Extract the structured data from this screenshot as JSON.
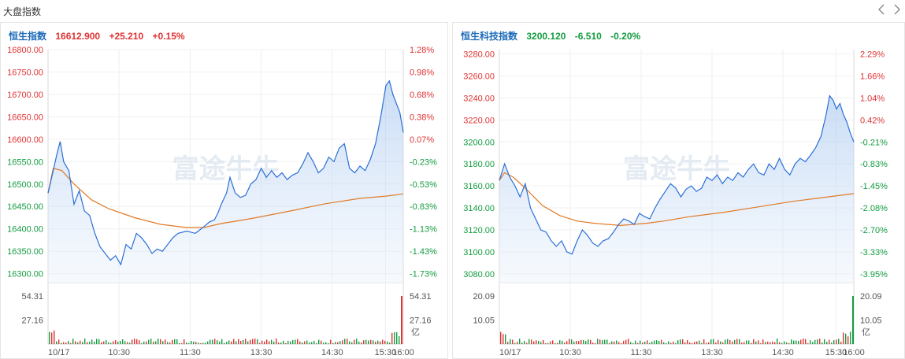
{
  "header": {
    "title": "大盘指数"
  },
  "colors": {
    "up": "#e03333",
    "down": "#149c40",
    "neutral": "#555555",
    "price_line": "#2b6fd6",
    "avg_line": "#e07a26",
    "name": "#1e6bb8"
  },
  "time_labels": [
    "10/17",
    "10:30",
    "11:30",
    "13:30",
    "14:30",
    "15:30",
    "16:00"
  ],
  "volume_unit": "亿",
  "watermark": "富途牛牛",
  "chart_data": [
    {
      "type": "line",
      "name": "恒生指数",
      "price": "16612.900",
      "change": "+25.210",
      "change_pct": "+0.15%",
      "direction": "up",
      "ylim": [
        16280,
        16800
      ],
      "prev_close": 16587.69,
      "y_ticks": [
        "16800.00",
        "16750.00",
        "16700.00",
        "16650.00",
        "16600.00",
        "16550.00",
        "16500.00",
        "16450.00",
        "16400.00",
        "16350.00",
        "16300.00"
      ],
      "y_tick_values": [
        16800,
        16750,
        16700,
        16650,
        16600,
        16550,
        16500,
        16450,
        16400,
        16350,
        16300
      ],
      "pct_ticks": [
        "1.28%",
        "0.98%",
        "0.68%",
        "0.38%",
        "0.07%",
        "-0.23%",
        "-0.53%",
        "-0.83%",
        "-1.13%",
        "-1.43%",
        "-1.73%"
      ],
      "price_points": [
        [
          0,
          16480
        ],
        [
          3,
          16530
        ],
        [
          5,
          16565
        ],
        [
          7,
          16595
        ],
        [
          9,
          16550
        ],
        [
          12,
          16530
        ],
        [
          15,
          16455
        ],
        [
          18,
          16485
        ],
        [
          21,
          16440
        ],
        [
          24,
          16430
        ],
        [
          27,
          16390
        ],
        [
          30,
          16360
        ],
        [
          33,
          16345
        ],
        [
          36,
          16330
        ],
        [
          39,
          16340
        ],
        [
          42,
          16320
        ],
        [
          45,
          16365
        ],
        [
          48,
          16355
        ],
        [
          51,
          16390
        ],
        [
          54,
          16380
        ],
        [
          57,
          16365
        ],
        [
          60,
          16345
        ],
        [
          63,
          16355
        ],
        [
          66,
          16350
        ],
        [
          69,
          16365
        ],
        [
          72,
          16380
        ],
        [
          75,
          16390
        ],
        [
          80,
          16395
        ],
        [
          85,
          16390
        ],
        [
          90,
          16405
        ],
        [
          93,
          16415
        ],
        [
          96,
          16420
        ],
        [
          98,
          16435
        ],
        [
          100,
          16455
        ],
        [
          103,
          16480
        ],
        [
          105,
          16515
        ],
        [
          108,
          16480
        ],
        [
          111,
          16470
        ],
        [
          114,
          16475
        ],
        [
          117,
          16500
        ],
        [
          120,
          16510
        ],
        [
          123,
          16535
        ],
        [
          126,
          16515
        ],
        [
          129,
          16530
        ],
        [
          132,
          16515
        ],
        [
          135,
          16525
        ],
        [
          138,
          16510
        ],
        [
          141,
          16520
        ],
        [
          144,
          16525
        ],
        [
          147,
          16545
        ],
        [
          150,
          16570
        ],
        [
          153,
          16550
        ],
        [
          156,
          16525
        ],
        [
          159,
          16535
        ],
        [
          162,
          16560
        ],
        [
          165,
          16550
        ],
        [
          168,
          16580
        ],
        [
          171,
          16590
        ],
        [
          174,
          16535
        ],
        [
          177,
          16525
        ],
        [
          180,
          16540
        ],
        [
          183,
          16530
        ],
        [
          186,
          16555
        ],
        [
          189,
          16590
        ],
        [
          192,
          16650
        ],
        [
          195,
          16720
        ],
        [
          197,
          16730
        ],
        [
          199,
          16700
        ],
        [
          201,
          16680
        ],
        [
          203,
          16660
        ],
        [
          205,
          16615
        ]
      ],
      "avg_points": [
        [
          0,
          16480
        ],
        [
          3,
          16535
        ],
        [
          8,
          16530
        ],
        [
          15,
          16500
        ],
        [
          25,
          16465
        ],
        [
          35,
          16445
        ],
        [
          50,
          16425
        ],
        [
          65,
          16410
        ],
        [
          80,
          16403
        ],
        [
          90,
          16403
        ],
        [
          100,
          16412
        ],
        [
          110,
          16418
        ],
        [
          120,
          16425
        ],
        [
          140,
          16440
        ],
        [
          160,
          16456
        ],
        [
          180,
          16468
        ],
        [
          195,
          16473
        ],
        [
          205,
          16478
        ]
      ],
      "volume_labels": [
        "54.31",
        "27.16"
      ],
      "volume_max": 54.31
    },
    {
      "type": "line",
      "name": "恒生科技指数",
      "price": "3200.120",
      "change": "-6.510",
      "change_pct": "-0.20%",
      "direction": "down",
      "ylim": [
        3072,
        3284
      ],
      "prev_close": 3206.63,
      "y_ticks": [
        "3280.00",
        "3260.00",
        "3240.00",
        "3220.00",
        "3200.00",
        "3180.00",
        "3160.00",
        "3140.00",
        "3120.00",
        "3100.00",
        "3080.00"
      ],
      "y_tick_values": [
        3280,
        3260,
        3240,
        3220,
        3200,
        3180,
        3160,
        3140,
        3120,
        3100,
        3080
      ],
      "pct_ticks": [
        "2.29%",
        "1.66%",
        "1.04%",
        "0.42%",
        "-0.21%",
        "-0.83%",
        "-1.45%",
        "-2.08%",
        "-2.70%",
        "-3.33%",
        "-3.95%"
      ],
      "price_points": [
        [
          0,
          3165
        ],
        [
          3,
          3180
        ],
        [
          6,
          3168
        ],
        [
          9,
          3160
        ],
        [
          12,
          3150
        ],
        [
          15,
          3162
        ],
        [
          18,
          3140
        ],
        [
          21,
          3130
        ],
        [
          24,
          3120
        ],
        [
          27,
          3118
        ],
        [
          30,
          3110
        ],
        [
          33,
          3105
        ],
        [
          36,
          3110
        ],
        [
          39,
          3100
        ],
        [
          42,
          3098
        ],
        [
          45,
          3110
        ],
        [
          48,
          3120
        ],
        [
          51,
          3115
        ],
        [
          54,
          3108
        ],
        [
          57,
          3105
        ],
        [
          60,
          3110
        ],
        [
          63,
          3112
        ],
        [
          66,
          3118
        ],
        [
          69,
          3125
        ],
        [
          72,
          3130
        ],
        [
          75,
          3128
        ],
        [
          78,
          3125
        ],
        [
          81,
          3135
        ],
        [
          84,
          3132
        ],
        [
          87,
          3130
        ],
        [
          90,
          3140
        ],
        [
          93,
          3148
        ],
        [
          96,
          3155
        ],
        [
          99,
          3162
        ],
        [
          102,
          3158
        ],
        [
          105,
          3150
        ],
        [
          108,
          3157
        ],
        [
          111,
          3160
        ],
        [
          114,
          3155
        ],
        [
          117,
          3158
        ],
        [
          120,
          3168
        ],
        [
          123,
          3165
        ],
        [
          126,
          3170
        ],
        [
          129,
          3162
        ],
        [
          132,
          3168
        ],
        [
          135,
          3165
        ],
        [
          138,
          3172
        ],
        [
          141,
          3168
        ],
        [
          144,
          3175
        ],
        [
          147,
          3180
        ],
        [
          150,
          3172
        ],
        [
          153,
          3170
        ],
        [
          156,
          3180
        ],
        [
          159,
          3175
        ],
        [
          162,
          3185
        ],
        [
          165,
          3175
        ],
        [
          168,
          3170
        ],
        [
          171,
          3180
        ],
        [
          174,
          3185
        ],
        [
          177,
          3182
        ],
        [
          180,
          3188
        ],
        [
          183,
          3195
        ],
        [
          186,
          3205
        ],
        [
          189,
          3225
        ],
        [
          191,
          3242
        ],
        [
          193,
          3238
        ],
        [
          195,
          3230
        ],
        [
          197,
          3235
        ],
        [
          199,
          3225
        ],
        [
          201,
          3218
        ],
        [
          203,
          3208
        ],
        [
          205,
          3200
        ]
      ],
      "avg_points": [
        [
          0,
          3165
        ],
        [
          3,
          3172
        ],
        [
          8,
          3168
        ],
        [
          15,
          3158
        ],
        [
          25,
          3142
        ],
        [
          35,
          3133
        ],
        [
          45,
          3128
        ],
        [
          55,
          3126
        ],
        [
          70,
          3124
        ],
        [
          85,
          3126
        ],
        [
          95,
          3128
        ],
        [
          110,
          3132
        ],
        [
          130,
          3136
        ],
        [
          150,
          3141
        ],
        [
          170,
          3146
        ],
        [
          190,
          3150
        ],
        [
          205,
          3153
        ]
      ],
      "volume_labels": [
        "20.09",
        "10.05"
      ],
      "volume_max": 20.09
    }
  ]
}
